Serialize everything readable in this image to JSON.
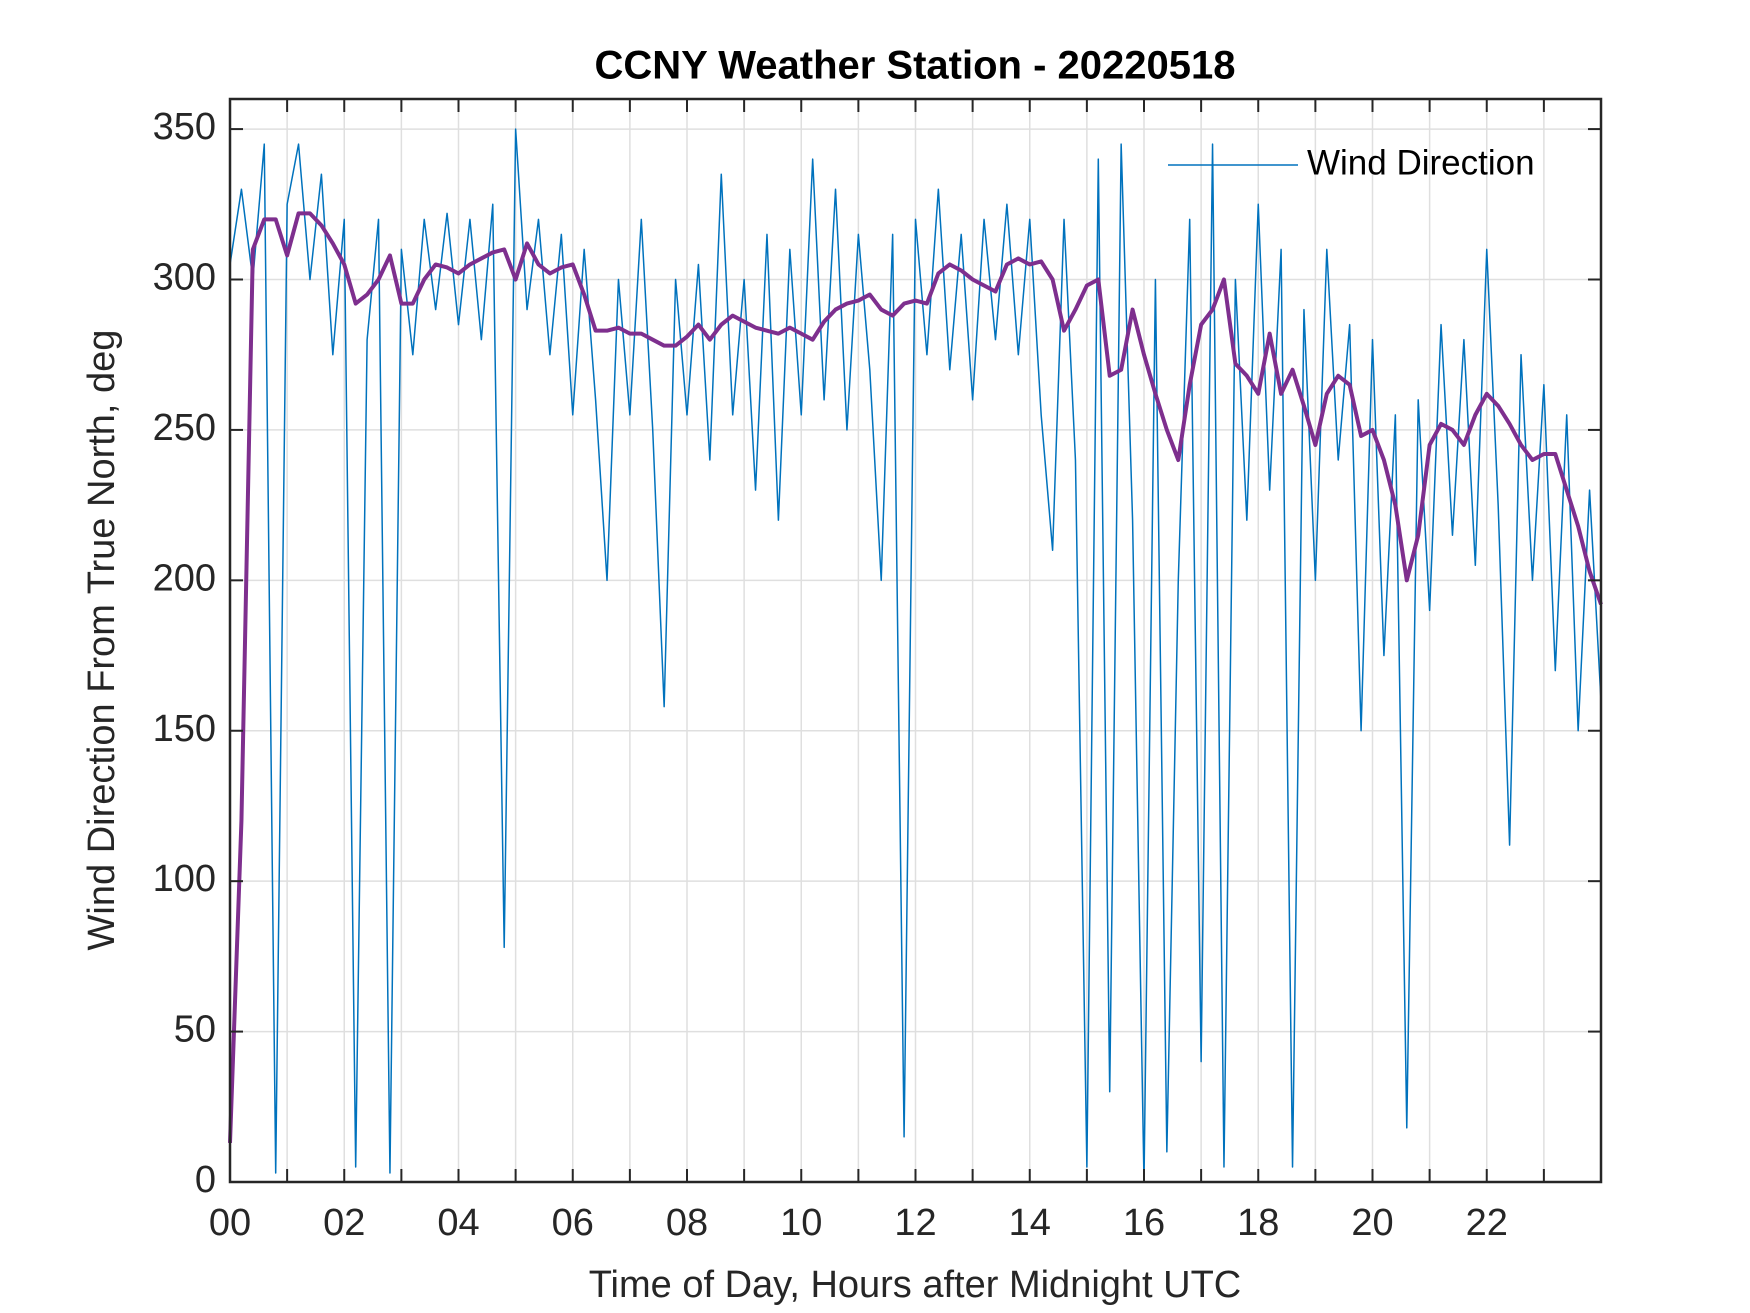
{
  "chart_data": {
    "type": "line",
    "title": "CCNY Weather Station - 20220518",
    "x_label": "Time of Day, Hours after Midnight UTC",
    "y_label": "Wind Direction From True North, deg",
    "x": [
      0,
      0.2,
      0.4,
      0.6,
      0.8,
      1,
      1.2,
      1.4,
      1.6,
      1.8,
      2,
      2.2,
      2.4,
      2.6,
      2.8,
      3,
      3.2,
      3.4,
      3.6,
      3.8,
      4,
      4.2,
      4.4,
      4.6,
      4.8,
      5,
      5.2,
      5.4,
      5.6,
      5.8,
      6,
      6.2,
      6.4,
      6.6,
      6.8,
      7,
      7.2,
      7.4,
      7.6,
      7.8,
      8,
      8.2,
      8.4,
      8.6,
      8.8,
      9,
      9.2,
      9.4,
      9.6,
      9.8,
      10,
      10.2,
      10.4,
      10.6,
      10.8,
      11,
      11.2,
      11.4,
      11.6,
      11.8,
      12,
      12.2,
      12.4,
      12.6,
      12.8,
      13,
      13.2,
      13.4,
      13.6,
      13.8,
      14,
      14.2,
      14.4,
      14.6,
      14.8,
      15,
      15.2,
      15.4,
      15.6,
      15.8,
      16,
      16.2,
      16.4,
      16.6,
      16.8,
      17,
      17.2,
      17.4,
      17.6,
      17.8,
      18,
      18.2,
      18.4,
      18.6,
      18.8,
      19,
      19.2,
      19.4,
      19.6,
      19.8,
      20,
      20.2,
      20.4,
      20.6,
      20.8,
      21,
      21.2,
      21.4,
      21.6,
      21.8,
      22,
      22.2,
      22.4,
      22.6,
      22.8,
      23,
      23.2,
      23.4,
      23.6,
      23.8,
      24
    ],
    "series": [
      {
        "name": "Wind Direction",
        "color": "#0072bd",
        "line_width": 1.5,
        "values": [
          305,
          330,
          300,
          345,
          3,
          325,
          345,
          300,
          335,
          275,
          320,
          5,
          280,
          320,
          3,
          310,
          275,
          320,
          290,
          322,
          285,
          320,
          280,
          325,
          78,
          350,
          290,
          320,
          275,
          315,
          255,
          310,
          260,
          200,
          300,
          255,
          320,
          250,
          158,
          300,
          255,
          305,
          240,
          335,
          255,
          300,
          230,
          315,
          220,
          310,
          255,
          340,
          260,
          330,
          250,
          315,
          270,
          200,
          315,
          15,
          320,
          275,
          330,
          270,
          315,
          260,
          320,
          280,
          325,
          275,
          320,
          255,
          210,
          320,
          240,
          5,
          340,
          30,
          345,
          220,
          0,
          300,
          10,
          200,
          320,
          40,
          345,
          5,
          300,
          220,
          325,
          230,
          310,
          5,
          290,
          200,
          310,
          240,
          285,
          150,
          280,
          175,
          255,
          18,
          260,
          190,
          285,
          215,
          280,
          205,
          310,
          225,
          112,
          275,
          200,
          265,
          170,
          255,
          150,
          230,
          160
        ]
      },
      {
        "color": "#7e2f8e",
        "line_width": 4,
        "values": [
          13,
          120,
          310,
          320,
          320,
          308,
          322,
          322,
          318,
          312,
          305,
          292,
          295,
          300,
          308,
          292,
          292,
          300,
          305,
          304,
          302,
          305,
          307,
          309,
          310,
          300,
          312,
          305,
          302,
          304,
          305,
          295,
          283,
          283,
          284,
          282,
          282,
          280,
          278,
          278,
          281,
          285,
          280,
          285,
          288,
          286,
          284,
          283,
          282,
          284,
          282,
          280,
          286,
          290,
          292,
          293,
          295,
          290,
          288,
          292,
          293,
          292,
          302,
          305,
          303,
          300,
          298,
          296,
          305,
          307,
          305,
          306,
          300,
          283,
          290,
          298,
          300,
          268,
          270,
          290,
          275,
          262,
          250,
          240,
          265,
          285,
          290,
          300,
          272,
          268,
          262,
          282,
          262,
          270,
          258,
          245,
          262,
          268,
          265,
          248,
          250,
          240,
          225,
          200,
          215,
          245,
          252,
          250,
          245,
          255,
          262,
          258,
          252,
          245,
          240,
          242,
          242,
          230,
          218,
          203,
          192
        ]
      }
    ],
    "xlim": [
      0,
      24
    ],
    "ylim": [
      0,
      360
    ],
    "xticks": [
      {
        "value": 0,
        "label": "00"
      },
      {
        "value": 2,
        "label": "02"
      },
      {
        "value": 4,
        "label": "04"
      },
      {
        "value": 6,
        "label": "06"
      },
      {
        "value": 8,
        "label": "08"
      },
      {
        "value": 10,
        "label": "10"
      },
      {
        "value": 12,
        "label": "12"
      },
      {
        "value": 14,
        "label": "14"
      },
      {
        "value": 16,
        "label": "16"
      },
      {
        "value": 18,
        "label": "18"
      },
      {
        "value": 20,
        "label": "20"
      },
      {
        "value": 22,
        "label": "22"
      }
    ],
    "xminorticks": [
      1,
      3,
      5,
      7,
      9,
      11,
      13,
      15,
      17,
      19,
      21,
      23
    ],
    "yticks": [
      0,
      50,
      100,
      150,
      200,
      250,
      300,
      350
    ],
    "grid": true,
    "legend": "northeast"
  }
}
